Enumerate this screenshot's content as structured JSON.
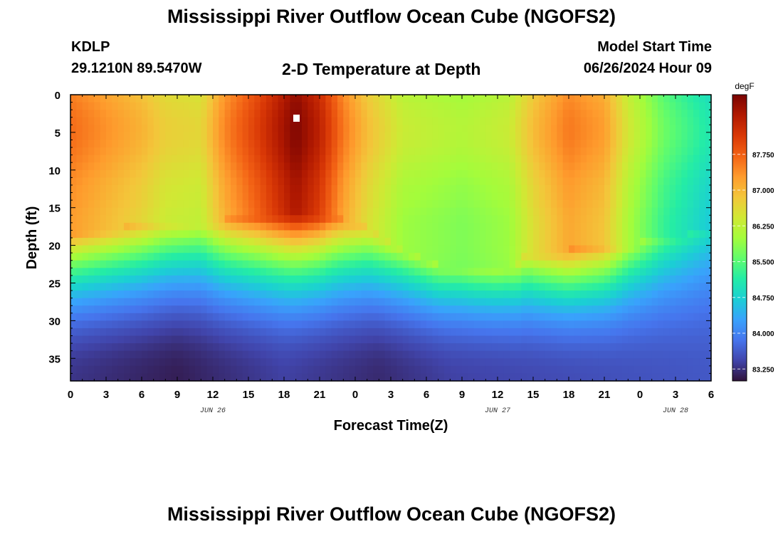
{
  "header": {
    "title": "Mississippi River Outflow Ocean Cube (NGOFS2)",
    "station": "KDLP",
    "coords": "29.1210N  89.5470W",
    "subtitle": "2-D Temperature at Depth",
    "model_start_label": "Model Start Time",
    "model_start_value": "06/26/2024 Hour 09"
  },
  "footer": {
    "title": "Mississippi River Outflow Ocean Cube (NGOFS2)"
  },
  "chart_data": {
    "type": "heatmap",
    "xlabel": "Forecast Time(Z)",
    "ylabel": "Depth (ft)",
    "x_range_hours": [
      0,
      54
    ],
    "x_ticks": [
      "0",
      "3",
      "6",
      "9",
      "12",
      "15",
      "18",
      "21",
      "0",
      "3",
      "6",
      "9",
      "12",
      "15",
      "18",
      "21",
      "0",
      "3",
      "6"
    ],
    "date_labels": [
      {
        "text": "JUN 26",
        "hour": 12
      },
      {
        "text": "JUN 27",
        "hour": 36
      },
      {
        "text": "JUN 28",
        "hour": 51
      }
    ],
    "y_range_ft": [
      0,
      38
    ],
    "y_reversed": true,
    "y_ticks": [
      0,
      5,
      10,
      15,
      20,
      25,
      30,
      35
    ],
    "colorbar": {
      "unit": "degF",
      "range": [
        83.0,
        89.0
      ],
      "ticks": [
        "83.250",
        "84.000",
        "84.750",
        "85.500",
        "86.250",
        "87.000",
        "87.750"
      ],
      "tick_values": [
        83.25,
        84.0,
        84.75,
        85.5,
        86.25,
        87.0,
        87.75
      ]
    },
    "colormap": [
      "#30123b",
      "#4145ab",
      "#4675ed",
      "#39a2fc",
      "#1bcfd4",
      "#24eca6",
      "#61fc6c",
      "#a4fc3b",
      "#d1e834",
      "#f3c63a",
      "#fe9b2d",
      "#f36315",
      "#d93806",
      "#b11901",
      "#7a0402"
    ],
    "surface_temp_keypoints": [
      [
        0,
        87.5
      ],
      [
        3,
        87.2
      ],
      [
        6,
        86.9
      ],
      [
        8,
        86.6
      ],
      [
        11,
        86.5
      ],
      [
        13,
        87.3
      ],
      [
        16,
        88.0
      ],
      [
        19,
        88.8
      ],
      [
        21,
        88.3
      ],
      [
        23,
        87.4
      ],
      [
        25,
        86.8
      ],
      [
        28,
        86.2
      ],
      [
        33,
        86.0
      ],
      [
        37,
        86.2
      ],
      [
        39,
        86.8
      ],
      [
        42,
        87.4
      ],
      [
        45,
        87.1
      ],
      [
        47,
        86.3
      ],
      [
        50,
        85.5
      ],
      [
        54,
        84.9
      ]
    ],
    "thermocline_depth_keypoints": [
      [
        0,
        21
      ],
      [
        9,
        20
      ],
      [
        13,
        19.5
      ],
      [
        19,
        18.5
      ],
      [
        22,
        19
      ],
      [
        25,
        20.5
      ],
      [
        28,
        23.5
      ],
      [
        31,
        25.5
      ],
      [
        34,
        26
      ],
      [
        36,
        26
      ],
      [
        37.5,
        25.5
      ],
      [
        38.5,
        24
      ],
      [
        42,
        23.5
      ],
      [
        46,
        23
      ],
      [
        50,
        22
      ],
      [
        54,
        21
      ]
    ],
    "bottom_temp_keypoints": [
      [
        0,
        83.3
      ],
      [
        9,
        83.1
      ],
      [
        18,
        83.4
      ],
      [
        26,
        83.2
      ],
      [
        32,
        83.4
      ],
      [
        42,
        83.5
      ],
      [
        54,
        83.6
      ]
    ]
  }
}
